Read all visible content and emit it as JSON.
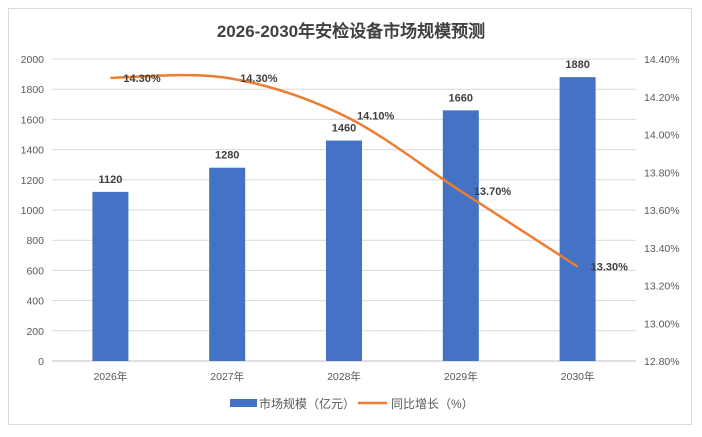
{
  "chart_data": {
    "type": "bar+line",
    "title": "2026-2030年安检设备市场规模预测",
    "categories": [
      "2026年",
      "2027年",
      "2028年",
      "2029年",
      "2030年"
    ],
    "series": [
      {
        "name": "市场规模（亿元）",
        "type": "bar",
        "axis": "left",
        "color": "#4472C4",
        "values": [
          1120,
          1280,
          1460,
          1660,
          1880
        ],
        "labels": [
          "1120",
          "1280",
          "1460",
          "1660",
          "1880"
        ]
      },
      {
        "name": "同比增长（%）",
        "type": "line",
        "axis": "right",
        "color": "#ED7D31",
        "smooth": true,
        "values": [
          14.3,
          14.3,
          14.1,
          13.7,
          13.3
        ],
        "labels": [
          "14.30%",
          "14.30%",
          "14.10%",
          "13.70%",
          "13.30%"
        ]
      }
    ],
    "left_axis": {
      "ylim": [
        0,
        2000
      ],
      "ticks": [
        "0",
        "200",
        "400",
        "600",
        "800",
        "1000",
        "1200",
        "1400",
        "1600",
        "1800",
        "2000"
      ]
    },
    "right_axis": {
      "ylim": [
        12.8,
        14.4
      ],
      "ticks": [
        "12.80%",
        "13.00%",
        "13.20%",
        "13.40%",
        "13.60%",
        "13.80%",
        "14.00%",
        "14.20%",
        "14.40%"
      ]
    },
    "grid": true,
    "legend": "bottom"
  }
}
